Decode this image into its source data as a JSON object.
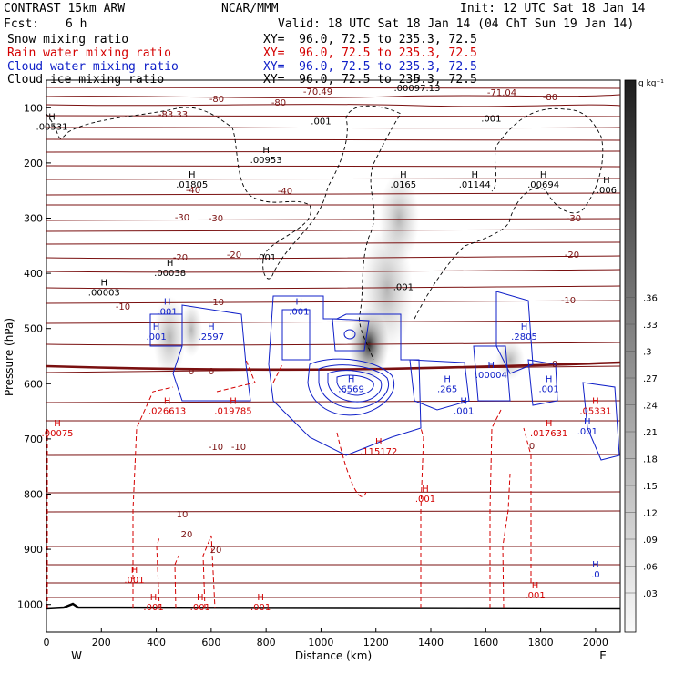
{
  "header": {
    "model": "CONTRAST 15km ARW",
    "org": "NCAR/MMM",
    "init": "Init: 12 UTC Sat 18 Jan 14",
    "fcst_label": "Fcst:",
    "fcst_value": "6 h",
    "valid": "Valid: 18 UTC Sat 18 Jan 14 (04 ChT Sun 19 Jan 14)"
  },
  "fields": [
    {
      "name": "Snow mixing ratio",
      "xy": "XY=  96.0, 72.5 to 235.3, 72.5",
      "color": "#000000"
    },
    {
      "name": "Rain water mixing ratio",
      "xy": "XY=  96.0, 72.5 to 235.3, 72.5",
      "color": "#d40000"
    },
    {
      "name": "Cloud water mixing ratio",
      "xy": "XY=  96.0, 72.5 to 235.3, 72.5",
      "color": "#1020c8"
    },
    {
      "name": "Cloud ice mixing ratio",
      "xy": "XY=  96.0, 72.5 to 235.3, 72.5",
      "color": "#000000"
    }
  ],
  "chart_data": {
    "type": "cross-section",
    "xlabel": "Distance (km)",
    "ylabel": "Pressure (hPa)",
    "xlim": [
      0,
      2090
    ],
    "ylim": [
      1050,
      50
    ],
    "x_ticks": [
      0,
      200,
      400,
      600,
      800,
      1000,
      1200,
      1400,
      1600,
      1800,
      2000
    ],
    "y_ticks": [
      100,
      200,
      300,
      400,
      500,
      600,
      700,
      800,
      900,
      1000
    ],
    "x_end_labels": {
      "left": "W",
      "right": "E"
    },
    "colorbar": {
      "units": "g kg⁻¹",
      "levels": [
        ".03",
        ".06",
        ".09",
        ".12",
        ".15",
        ".18",
        ".21",
        ".24",
        ".27",
        ".3",
        ".33",
        ".36"
      ]
    },
    "temperature_labels": [
      "-70.49",
      "-71.04",
      "-80",
      "-83.33",
      "-40",
      "-30",
      "-20",
      "-10",
      "0",
      "10",
      "20"
    ],
    "snow_labels": [
      {
        "x": 20,
        "p": 140,
        "text": ".00531"
      },
      {
        "x": 800,
        "p": 200,
        "text": ".00953"
      },
      {
        "x": 530,
        "p": 245,
        "text": ".01805"
      },
      {
        "x": 1300,
        "p": 245,
        "text": ".0165"
      },
      {
        "x": 1560,
        "p": 245,
        "text": ".01144"
      },
      {
        "x": 1810,
        "p": 245,
        "text": ".00694"
      },
      {
        "x": 2040,
        "p": 255,
        "text": ".006"
      },
      {
        "x": 450,
        "p": 405,
        "text": ".00038"
      },
      {
        "x": 210,
        "p": 440,
        "text": ".00003"
      },
      {
        "x": 1350,
        "p": 70,
        "text": ".00097.13"
      }
    ],
    "cloud_ice_labels": [
      {
        "x": 1000,
        "p": 130,
        "text": ".001"
      },
      {
        "x": 1620,
        "p": 125,
        "text": ".001"
      },
      {
        "x": 800,
        "p": 377,
        "text": ".001"
      },
      {
        "x": 1300,
        "p": 430,
        "text": ".001"
      }
    ],
    "cloud_water_labels": [
      {
        "x": 440,
        "p": 475,
        "text": ".001"
      },
      {
        "x": 920,
        "p": 475,
        "text": ".001"
      },
      {
        "x": 400,
        "p": 520,
        "text": ".001"
      },
      {
        "x": 600,
        "p": 520,
        "text": ".2597"
      },
      {
        "x": 1740,
        "p": 520,
        "text": ".2805"
      },
      {
        "x": 1110,
        "p": 615,
        "text": ".6569"
      },
      {
        "x": 1460,
        "p": 615,
        "text": ".265"
      },
      {
        "x": 1520,
        "p": 655,
        "text": ".001"
      },
      {
        "x": 1830,
        "p": 615,
        "text": ".001"
      },
      {
        "x": 1970,
        "p": 692,
        "text": ".001"
      },
      {
        "x": 1620,
        "p": 590,
        "text": ".00004"
      },
      {
        "x": 2000,
        "p": 951,
        "text": ".0"
      }
    ],
    "rain_labels": [
      {
        "x": 440,
        "p": 655,
        "text": ".026613"
      },
      {
        "x": 680,
        "p": 655,
        "text": ".019785"
      },
      {
        "x": 40,
        "p": 695,
        "text": ".00075"
      },
      {
        "x": 1210,
        "p": 728,
        "text": ".115172"
      },
      {
        "x": 1830,
        "p": 695,
        "text": ".017631"
      },
      {
        "x": 2000,
        "p": 655,
        "text": ".05331"
      },
      {
        "x": 1380,
        "p": 814,
        "text": ".001"
      },
      {
        "x": 320,
        "p": 961,
        "text": ".001"
      },
      {
        "x": 1780,
        "p": 989,
        "text": ".001"
      },
      {
        "x": 390,
        "p": 1010,
        "text": ".001"
      },
      {
        "x": 560,
        "p": 1010,
        "text": ".001"
      },
      {
        "x": 780,
        "p": 1010,
        "text": ".001"
      }
    ]
  }
}
